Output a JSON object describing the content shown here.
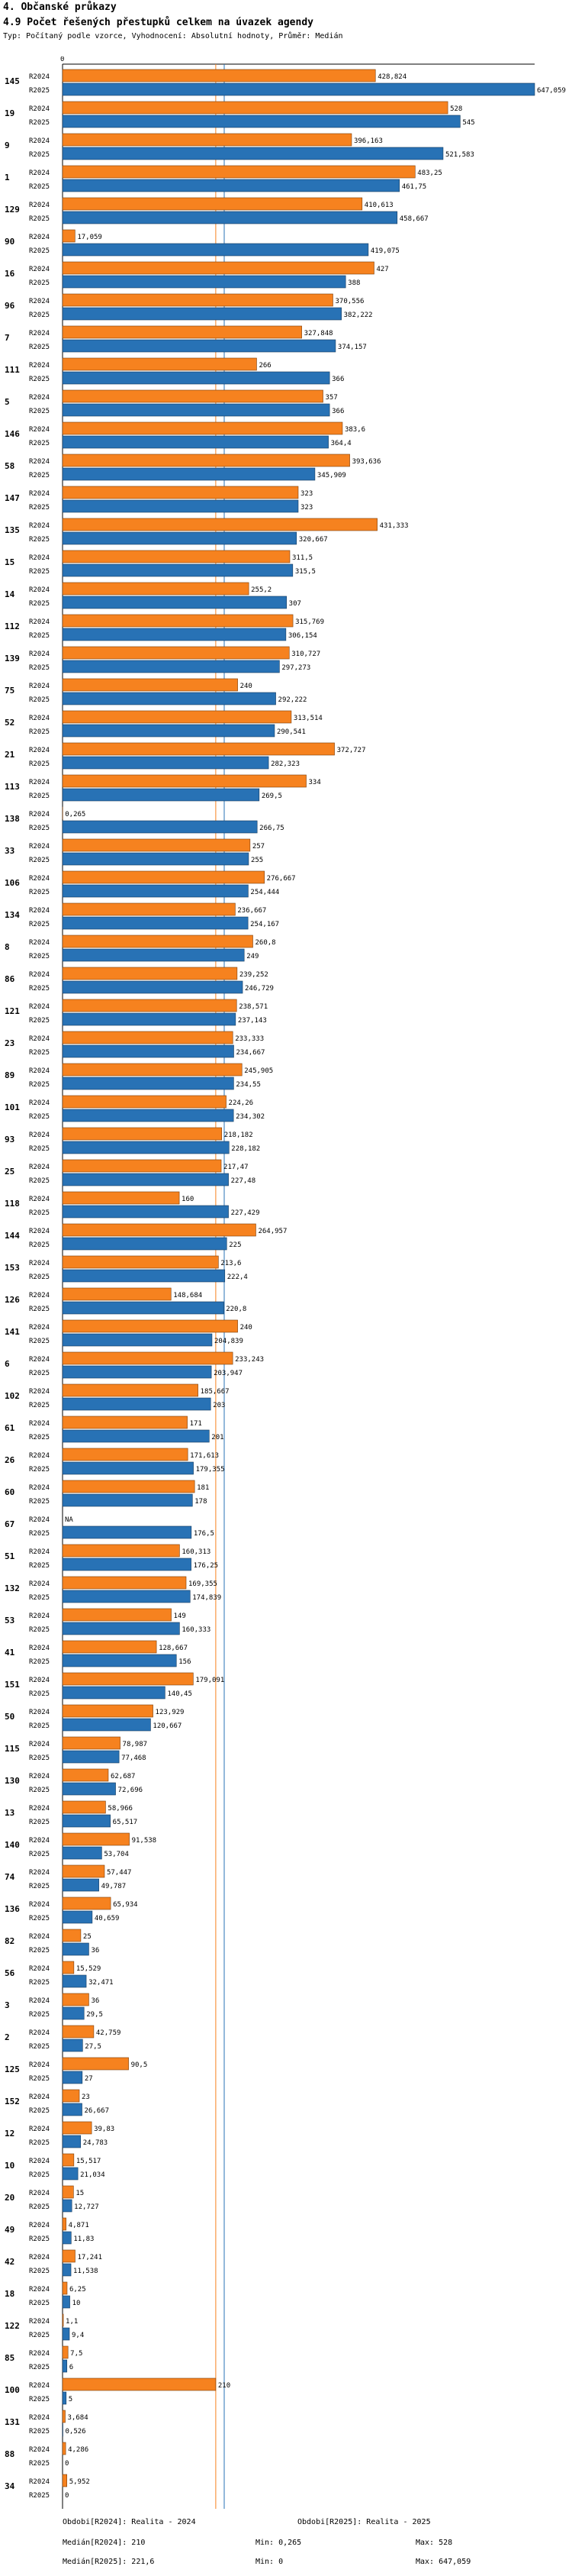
{
  "header": {
    "section": "4. Občanské průkazy",
    "title": "4.9 Počet řešených přestupků celkem na úvazek agendy",
    "subtitle": "Typ: Počítaný podle vzorce, Vyhodnocení: Absolutní hodnoty, Průměr: Medián"
  },
  "chart_data": {
    "type": "bar",
    "orientation": "horizontal",
    "title": "4.9 Počet řešených přestupků celkem na úvazek agendy",
    "xlim": [
      0,
      647.059
    ],
    "x_tick_label": "0",
    "series_names": [
      "R2024",
      "R2025"
    ],
    "colors": {
      "R2024": "#f6821f",
      "R2025": "#2872b5",
      "median2024": "#f6821f",
      "median2025": "#2872b5"
    },
    "medians": {
      "R2024": 210,
      "R2025": 221.6
    },
    "categories": [
      "145",
      "19",
      "9",
      "1",
      "129",
      "90",
      "16",
      "96",
      "7",
      "111",
      "5",
      "146",
      "58",
      "147",
      "135",
      "15",
      "14",
      "112",
      "139",
      "75",
      "52",
      "21",
      "113",
      "138",
      "33",
      "106",
      "134",
      "8",
      "86",
      "121",
      "23",
      "89",
      "101",
      "93",
      "25",
      "118",
      "144",
      "153",
      "126",
      "141",
      "6",
      "102",
      "61",
      "26",
      "60",
      "67",
      "51",
      "132",
      "53",
      "41",
      "151",
      "50",
      "115",
      "130",
      "13",
      "140",
      "74",
      "136",
      "82",
      "56",
      "3",
      "2",
      "125",
      "152",
      "12",
      "10",
      "20",
      "49",
      "42",
      "18",
      "122",
      "85",
      "100",
      "131",
      "88",
      "34"
    ],
    "values": {
      "R2024": [
        "428,824",
        "528",
        "396,163",
        "483,25",
        "410,613",
        "17,059",
        "427",
        "370,556",
        "327,848",
        "266",
        "357",
        "383,6",
        "393,636",
        "323",
        "431,333",
        "311,5",
        "255,2",
        "315,769",
        "310,727",
        "240",
        "313,514",
        "372,727",
        "334",
        "0,265",
        "257",
        "276,667",
        "236,667",
        "260,8",
        "239,252",
        "238,571",
        "233,333",
        "245,905",
        "224,26",
        "218,182",
        "217,47",
        "160",
        "264,957",
        "213,6",
        "148,684",
        "240",
        "233,243",
        "185,667",
        "171",
        "171,613",
        "181",
        "NA",
        "160,313",
        "169,355",
        "149",
        "128,667",
        "179,091",
        "123,929",
        "78,987",
        "62,687",
        "58,966",
        "91,538",
        "57,447",
        "65,934",
        "25",
        "15,529",
        "36",
        "42,759",
        "90,5",
        "23",
        "39,83",
        "15,517",
        "15",
        "4,871",
        "17,241",
        "6,25",
        "1,1",
        "7,5",
        "210",
        "3,684",
        "4,286",
        "5,952"
      ],
      "R2025": [
        "647,059",
        "545",
        "521,583",
        "461,75",
        "458,667",
        "419,075",
        "388",
        "382,222",
        "374,157",
        "366",
        "366",
        "364,4",
        "345,909",
        "323",
        "320,667",
        "315,5",
        "307",
        "306,154",
        "297,273",
        "292,222",
        "290,541",
        "282,323",
        "269,5",
        "266,75",
        "255",
        "254,444",
        "254,167",
        "249",
        "246,729",
        "237,143",
        "234,667",
        "234,55",
        "234,302",
        "228,182",
        "227,48",
        "227,429",
        "225",
        "222,4",
        "220,8",
        "204,839",
        "203,947",
        "203",
        "201",
        "179,355",
        "178",
        "176,5",
        "176,25",
        "174,839",
        "160,333",
        "156",
        "140,45",
        "120,667",
        "77,468",
        "72,696",
        "65,517",
        "53,704",
        "49,787",
        "40,659",
        "36",
        "32,471",
        "29,5",
        "27,5",
        "27",
        "26,667",
        "24,783",
        "21,034",
        "12,727",
        "11,83",
        "11,538",
        "10",
        "9,4",
        "6",
        "5",
        "0,526",
        "0",
        "0"
      ]
    }
  },
  "footer": {
    "left_line1": "Obdobi[R2024]: Realita - 2024",
    "left_line2": "Medián[R2024]: 210",
    "left_line3": "Medián[R2025]: 221,6",
    "mid_line2": "Min: 0,265",
    "mid_line3": "Min: 0",
    "right_line1": "Obdobi[R2025]: Realita - 2025",
    "right_line2": "Max: 528",
    "right_line3": "Max: 647,059"
  }
}
